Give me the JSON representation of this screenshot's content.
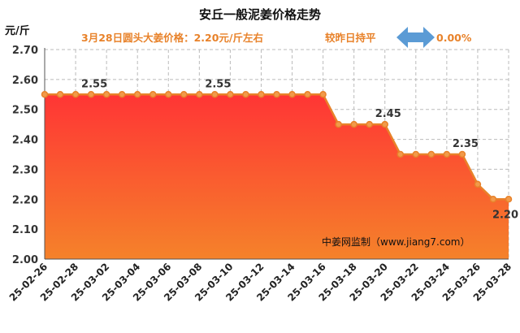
{
  "chart": {
    "title": "安丘一般泥姜价格走势",
    "unit": "元/斤",
    "subtitle_date_price": "3月28日圆头大姜价格：2.20元/斤左右",
    "subtitle_compare": "较昨日持平",
    "subtitle_change": "0.00%",
    "watermark": "中姜网监制（www.jiang7.com）"
  },
  "colors": {
    "line": "#e8822a",
    "marker_fill": "#f29a4a",
    "area_top": "#ff3535",
    "area_bottom": "#f5822a",
    "subtitle": "#e8822a",
    "arrow": "#5b9bd5",
    "grid": "#bbbbbb"
  },
  "icons": {
    "change_indicator": "double-arrow-icon"
  },
  "chart_data": {
    "type": "area",
    "ylim": [
      2.0,
      2.7
    ],
    "yticks": [
      "2.00",
      "2.10",
      "2.20",
      "2.30",
      "2.40",
      "2.50",
      "2.60",
      "2.70"
    ],
    "grid": true,
    "x": [
      "25-02-26",
      "25-02-27",
      "25-02-28",
      "25-03-01",
      "25-03-02",
      "25-03-03",
      "25-03-04",
      "25-03-05",
      "25-03-06",
      "25-03-07",
      "25-03-08",
      "25-03-09",
      "25-03-10",
      "25-03-11",
      "25-03-12",
      "25-03-13",
      "25-03-14",
      "25-03-15",
      "25-03-16",
      "25-03-17",
      "25-03-18",
      "25-03-19",
      "25-03-20",
      "25-03-21",
      "25-03-22",
      "25-03-23",
      "25-03-24",
      "25-03-25",
      "25-03-26",
      "25-03-27",
      "25-03-28"
    ],
    "xticks": [
      "25-02-26",
      "25-02-28",
      "25-03-02",
      "25-03-04",
      "25-03-06",
      "25-03-08",
      "25-03-10",
      "25-03-12",
      "25-03-14",
      "25-03-16",
      "25-03-18",
      "25-03-20",
      "25-03-22",
      "25-03-24",
      "25-03-26",
      "25-03-28"
    ],
    "values": [
      2.55,
      2.55,
      2.55,
      2.55,
      2.55,
      2.55,
      2.55,
      2.55,
      2.55,
      2.55,
      2.55,
      2.55,
      2.55,
      2.55,
      2.55,
      2.55,
      2.55,
      2.55,
      2.55,
      2.45,
      2.45,
      2.45,
      2.45,
      2.35,
      2.35,
      2.35,
      2.35,
      2.35,
      2.25,
      2.2,
      2.2
    ],
    "data_labels": [
      {
        "x": "25-03-01",
        "text": "2.55"
      },
      {
        "x": "25-03-09",
        "text": "2.55"
      },
      {
        "x": "25-03-20",
        "text": "2.45"
      },
      {
        "x": "25-03-25",
        "text": "2.35"
      },
      {
        "x": "25-03-28",
        "text": "2.20"
      }
    ]
  }
}
